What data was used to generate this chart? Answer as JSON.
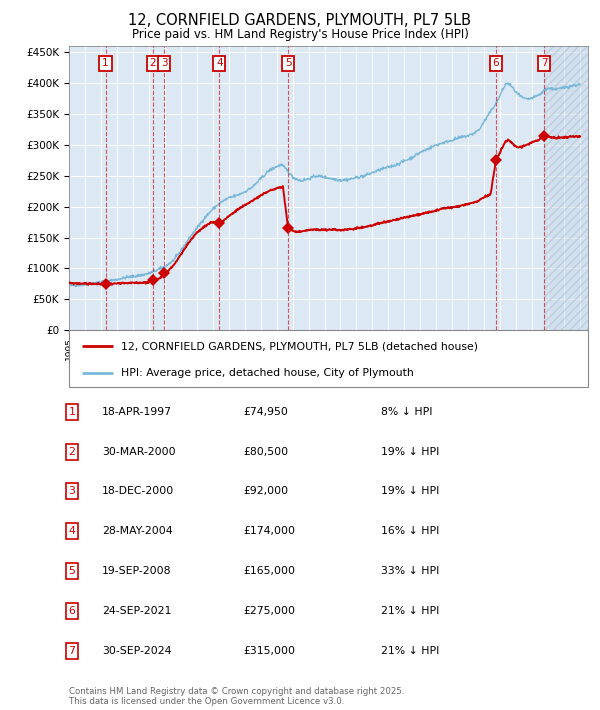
{
  "title": "12, CORNFIELD GARDENS, PLYMOUTH, PL7 5LB",
  "subtitle": "Price paid vs. HM Land Registry's House Price Index (HPI)",
  "red_label": "12, CORNFIELD GARDENS, PLYMOUTH, PL7 5LB (detached house)",
  "blue_label": "HPI: Average price, detached house, City of Plymouth",
  "transactions": [
    {
      "num": 1,
      "date": "18-APR-1997",
      "year": 1997.29,
      "price": 74950,
      "pct": "8% ↓ HPI"
    },
    {
      "num": 2,
      "date": "30-MAR-2000",
      "year": 2000.25,
      "price": 80500,
      "pct": "19% ↓ HPI"
    },
    {
      "num": 3,
      "date": "18-DEC-2000",
      "year": 2000.96,
      "price": 92000,
      "pct": "19% ↓ HPI"
    },
    {
      "num": 4,
      "date": "28-MAY-2004",
      "year": 2004.41,
      "price": 174000,
      "pct": "16% ↓ HPI"
    },
    {
      "num": 5,
      "date": "19-SEP-2008",
      "year": 2008.72,
      "price": 165000,
      "pct": "33% ↓ HPI"
    },
    {
      "num": 6,
      "date": "24-SEP-2021",
      "year": 2021.73,
      "price": 275000,
      "pct": "21% ↓ HPI"
    },
    {
      "num": 7,
      "date": "30-SEP-2024",
      "year": 2024.75,
      "price": 315000,
      "pct": "21% ↓ HPI"
    }
  ],
  "ylim": [
    0,
    460000
  ],
  "xlim_start": 1995.0,
  "xlim_end": 2027.5,
  "plot_bg_color": "#dce9f5",
  "hatch_start": 2024.75,
  "footer": "Contains HM Land Registry data © Crown copyright and database right 2025.\nThis data is licensed under the Open Government Licence v3.0.",
  "hpi_anchors": [
    [
      1995.0,
      72000
    ],
    [
      1996.0,
      74000
    ],
    [
      1997.0,
      78000
    ],
    [
      1997.5,
      80000
    ],
    [
      1998.0,
      82000
    ],
    [
      1998.5,
      85000
    ],
    [
      1999.0,
      87000
    ],
    [
      1999.5,
      89000
    ],
    [
      2000.0,
      92000
    ],
    [
      2000.5,
      97000
    ],
    [
      2001.0,
      103000
    ],
    [
      2001.5,
      112000
    ],
    [
      2002.0,
      128000
    ],
    [
      2002.5,
      148000
    ],
    [
      2003.0,
      165000
    ],
    [
      2003.5,
      182000
    ],
    [
      2004.0,
      196000
    ],
    [
      2004.5,
      207000
    ],
    [
      2005.0,
      214000
    ],
    [
      2005.5,
      218000
    ],
    [
      2006.0,
      224000
    ],
    [
      2006.5,
      232000
    ],
    [
      2007.0,
      245000
    ],
    [
      2007.5,
      258000
    ],
    [
      2008.0,
      265000
    ],
    [
      2008.3,
      268000
    ],
    [
      2008.7,
      258000
    ],
    [
      2009.0,
      248000
    ],
    [
      2009.5,
      242000
    ],
    [
      2010.0,
      245000
    ],
    [
      2010.5,
      250000
    ],
    [
      2011.0,
      248000
    ],
    [
      2011.5,
      245000
    ],
    [
      2012.0,
      243000
    ],
    [
      2012.5,
      244000
    ],
    [
      2013.0,
      247000
    ],
    [
      2013.5,
      250000
    ],
    [
      2014.0,
      255000
    ],
    [
      2014.5,
      260000
    ],
    [
      2015.0,
      264000
    ],
    [
      2015.5,
      268000
    ],
    [
      2016.0,
      274000
    ],
    [
      2016.5,
      280000
    ],
    [
      2017.0,
      288000
    ],
    [
      2017.5,
      294000
    ],
    [
      2018.0,
      300000
    ],
    [
      2018.5,
      304000
    ],
    [
      2019.0,
      308000
    ],
    [
      2019.5,
      312000
    ],
    [
      2020.0,
      315000
    ],
    [
      2020.3,
      318000
    ],
    [
      2020.7,
      325000
    ],
    [
      2021.0,
      338000
    ],
    [
      2021.3,
      350000
    ],
    [
      2021.6,
      362000
    ],
    [
      2021.9,
      375000
    ],
    [
      2022.2,
      392000
    ],
    [
      2022.4,
      400000
    ],
    [
      2022.6,
      398000
    ],
    [
      2022.8,
      392000
    ],
    [
      2023.0,
      385000
    ],
    [
      2023.3,
      378000
    ],
    [
      2023.6,
      374000
    ],
    [
      2023.9,
      375000
    ],
    [
      2024.2,
      378000
    ],
    [
      2024.5,
      382000
    ],
    [
      2024.75,
      388000
    ],
    [
      2025.0,
      392000
    ],
    [
      2025.5,
      390000
    ],
    [
      2026.0,
      393000
    ],
    [
      2026.5,
      396000
    ],
    [
      2027.0,
      398000
    ]
  ],
  "red_anchors": [
    [
      1995.0,
      76000
    ],
    [
      1996.0,
      75500
    ],
    [
      1997.0,
      74500
    ],
    [
      1997.29,
      74950
    ],
    [
      1997.6,
      75200
    ],
    [
      1998.0,
      75500
    ],
    [
      1998.5,
      76000
    ],
    [
      1999.0,
      76500
    ],
    [
      1999.5,
      77000
    ],
    [
      2000.0,
      77500
    ],
    [
      2000.25,
      80500
    ],
    [
      2000.6,
      83000
    ],
    [
      2000.96,
      92000
    ],
    [
      2001.0,
      93000
    ],
    [
      2001.3,
      98000
    ],
    [
      2001.6,
      107000
    ],
    [
      2002.0,
      122000
    ],
    [
      2002.5,
      142000
    ],
    [
      2003.0,
      158000
    ],
    [
      2003.5,
      168000
    ],
    [
      2004.0,
      175000
    ],
    [
      2004.41,
      174000
    ],
    [
      2004.6,
      176000
    ],
    [
      2004.8,
      180000
    ],
    [
      2005.0,
      185000
    ],
    [
      2005.3,
      190000
    ],
    [
      2005.6,
      196000
    ],
    [
      2006.0,
      202000
    ],
    [
      2006.5,
      210000
    ],
    [
      2007.0,
      218000
    ],
    [
      2007.5,
      225000
    ],
    [
      2008.0,
      230000
    ],
    [
      2008.4,
      232000
    ],
    [
      2008.72,
      165000
    ],
    [
      2008.9,
      162000
    ],
    [
      2009.2,
      159000
    ],
    [
      2009.5,
      160000
    ],
    [
      2010.0,
      162000
    ],
    [
      2010.5,
      163000
    ],
    [
      2011.0,
      162000
    ],
    [
      2011.5,
      163000
    ],
    [
      2012.0,
      162000
    ],
    [
      2012.5,
      163000
    ],
    [
      2013.0,
      165000
    ],
    [
      2013.5,
      167000
    ],
    [
      2014.0,
      170000
    ],
    [
      2014.5,
      173000
    ],
    [
      2015.0,
      176000
    ],
    [
      2015.5,
      179000
    ],
    [
      2016.0,
      182000
    ],
    [
      2016.5,
      185000
    ],
    [
      2017.0,
      188000
    ],
    [
      2017.5,
      191000
    ],
    [
      2018.0,
      194000
    ],
    [
      2018.5,
      197000
    ],
    [
      2019.0,
      199000
    ],
    [
      2019.5,
      201000
    ],
    [
      2020.0,
      204000
    ],
    [
      2020.5,
      208000
    ],
    [
      2021.0,
      215000
    ],
    [
      2021.4,
      220000
    ],
    [
      2021.73,
      275000
    ],
    [
      2022.0,
      288000
    ],
    [
      2022.3,
      305000
    ],
    [
      2022.5,
      308000
    ],
    [
      2022.7,
      304000
    ],
    [
      2022.9,
      299000
    ],
    [
      2023.1,
      296000
    ],
    [
      2023.4,
      298000
    ],
    [
      2023.7,
      301000
    ],
    [
      2024.0,
      304000
    ],
    [
      2024.4,
      308000
    ],
    [
      2024.75,
      315000
    ],
    [
      2025.0,
      313000
    ],
    [
      2025.5,
      311000
    ],
    [
      2026.0,
      312000
    ],
    [
      2026.5,
      313000
    ],
    [
      2027.0,
      314000
    ]
  ]
}
